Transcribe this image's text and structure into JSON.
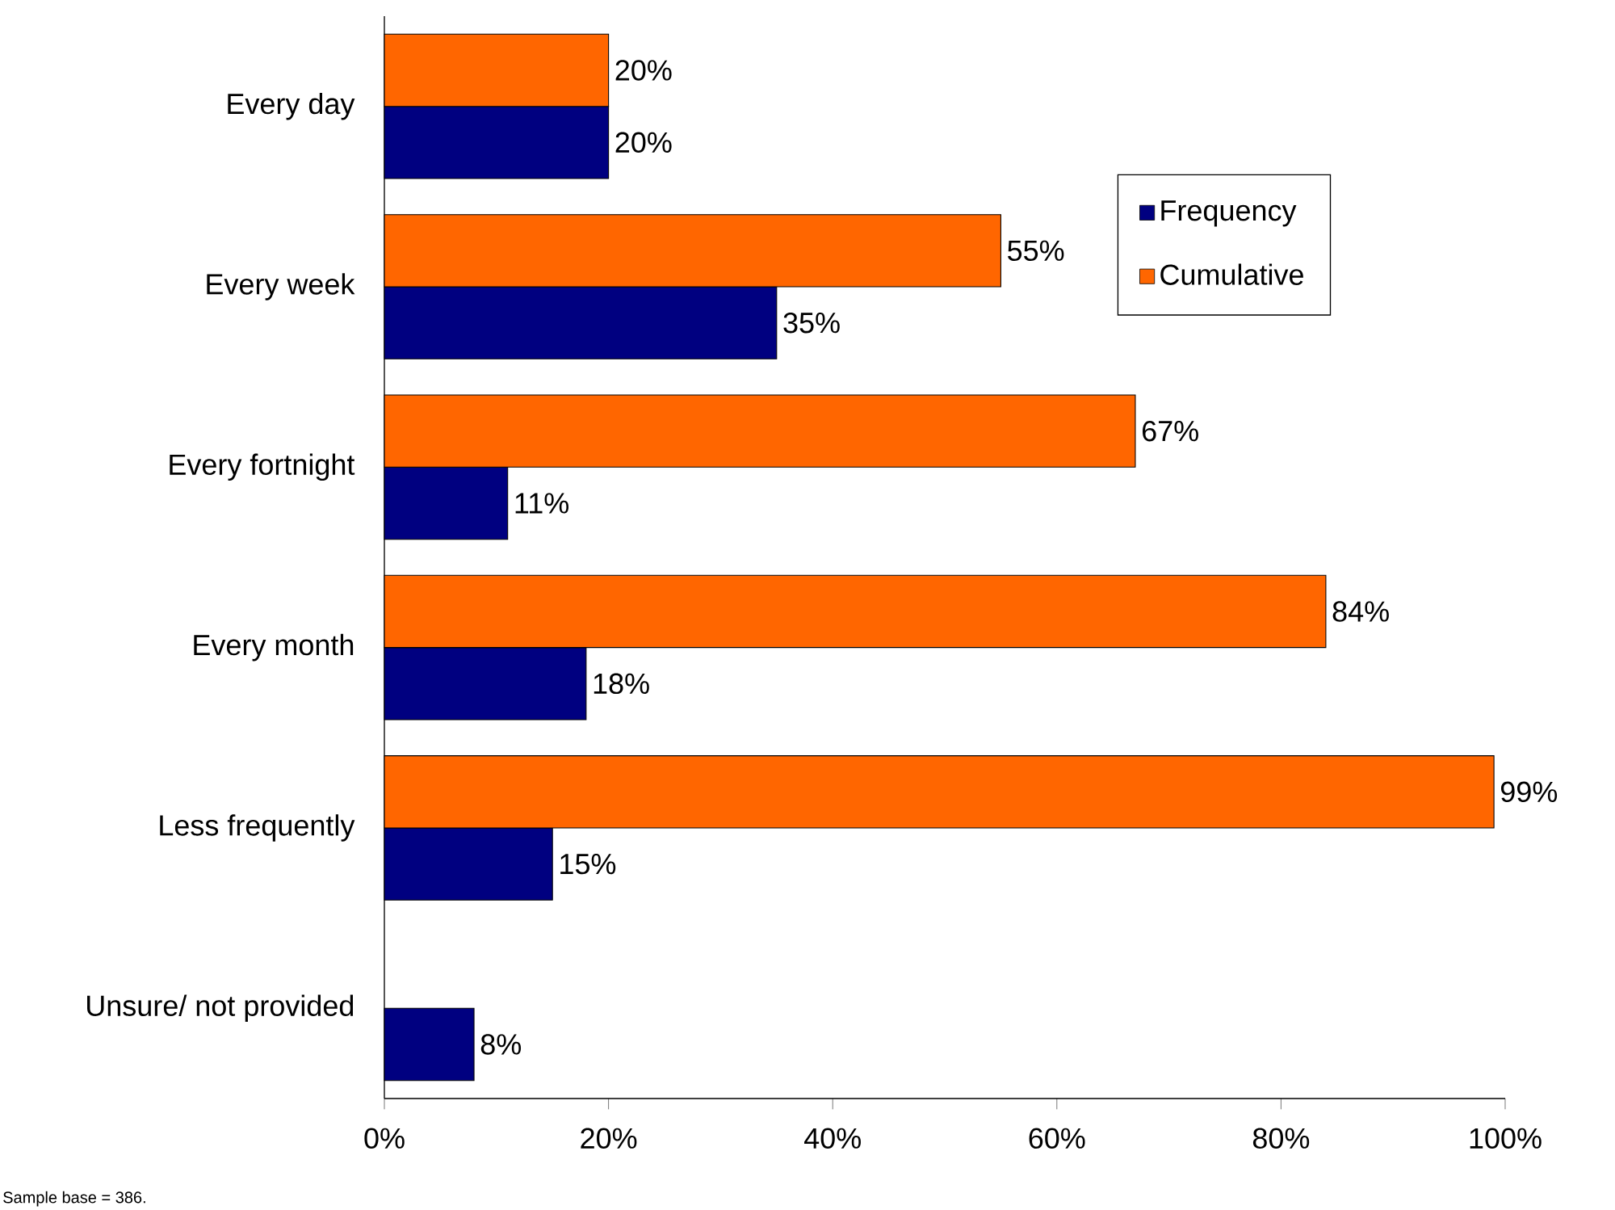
{
  "chart_data": {
    "type": "bar",
    "orientation": "horizontal",
    "categories": [
      "Every day",
      "Every week",
      "Every fortnight",
      "Every month",
      "Less frequently",
      "Unsure/ not provided"
    ],
    "series": [
      {
        "name": "Frequency",
        "color": "#000080",
        "values": [
          20,
          35,
          11,
          18,
          15,
          8
        ],
        "value_labels": [
          "20%",
          "35%",
          "11%",
          "18%",
          "15%",
          "8%"
        ]
      },
      {
        "name": "Cumulative",
        "color": "#ff6600",
        "values": [
          20,
          55,
          67,
          84,
          99,
          null
        ],
        "value_labels": [
          "20%",
          "55%",
          "67%",
          "84%",
          "99%",
          null
        ]
      }
    ],
    "xlim": [
      0,
      100
    ],
    "xticks": [
      {
        "value": 0,
        "label": "0%"
      },
      {
        "value": 20,
        "label": "20%"
      },
      {
        "value": 40,
        "label": "40%"
      },
      {
        "value": 60,
        "label": "60%"
      },
      {
        "value": 80,
        "label": "80%"
      },
      {
        "value": 100,
        "label": "100%"
      }
    ],
    "legend": "top right",
    "annotations": [
      "Sample base = 386."
    ]
  }
}
